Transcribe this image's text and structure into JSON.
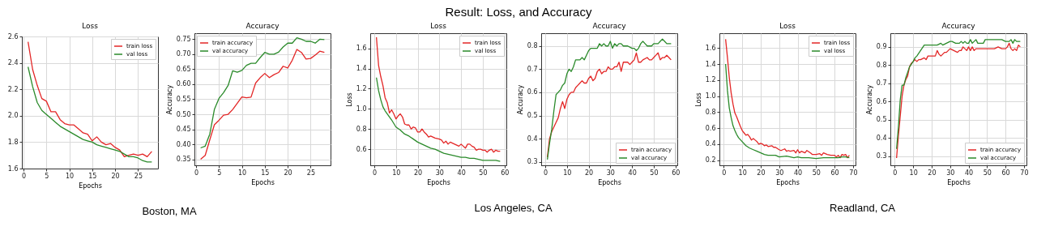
{
  "chart_data": [
    {
      "type": "line",
      "title": "Loss",
      "xlabel": "Epochs",
      "annotations": [
        "Result: Loss, and Accuracy",
        "Boston, MA"
      ],
      "xlim": [
        -0.35,
        29.35
      ],
      "xticks": [
        0,
        5,
        10,
        15,
        20,
        25
      ],
      "ylim": [
        1.6,
        2.6
      ],
      "yticks": [
        1.6,
        1.8,
        {
          "value": 2.0,
          "label": "2.0"
        },
        2.2,
        2.4,
        2.6
      ],
      "grid": true,
      "legend": "top right",
      "x": [
        1,
        2,
        3,
        4,
        5,
        6,
        7,
        8,
        9,
        10,
        11,
        12,
        13,
        14,
        15,
        16,
        17,
        18,
        19,
        20,
        21,
        22,
        23,
        24,
        25,
        26,
        27,
        28
      ],
      "series": [
        {
          "name": "train loss",
          "color": "#e32626",
          "values": [
            2.56,
            2.35,
            2.23,
            2.13,
            2.11,
            2.03,
            2.03,
            1.97,
            1.94,
            1.93,
            1.93,
            1.9,
            1.87,
            1.86,
            1.81,
            1.84,
            1.8,
            1.78,
            1.79,
            1.76,
            1.74,
            1.69,
            1.7,
            1.71,
            1.7,
            1.71,
            1.69,
            1.73
          ]
        },
        {
          "name": "val loss",
          "color": "#2a8a2a",
          "values": [
            2.37,
            2.22,
            2.1,
            2.04,
            2.01,
            1.98,
            1.95,
            1.92,
            1.9,
            1.88,
            1.86,
            1.84,
            1.82,
            1.81,
            1.8,
            1.78,
            1.77,
            1.76,
            1.75,
            1.74,
            1.73,
            1.71,
            1.69,
            1.69,
            1.68,
            1.66,
            1.65,
            1.65
          ]
        }
      ]
    },
    {
      "type": "line",
      "title": "Accuracy",
      "xlabel": "Epochs",
      "ylabel": "Accuracy",
      "xlim": [
        -0.35,
        29.35
      ],
      "xticks": [
        0,
        5,
        10,
        15,
        20,
        25
      ],
      "ylim": [
        0.33,
        0.77
      ],
      "yticks": [
        0.35,
        {
          "value": 0.4,
          "label": "0.40"
        },
        0.45,
        {
          "value": 0.5,
          "label": "0.50"
        },
        0.55,
        {
          "value": 0.6,
          "label": "0.60"
        },
        0.65,
        {
          "value": 0.7,
          "label": "0.70"
        },
        0.75
      ],
      "grid": true,
      "legend": "top left",
      "x": [
        1,
        2,
        3,
        4,
        5,
        6,
        7,
        8,
        9,
        10,
        11,
        12,
        13,
        14,
        15,
        16,
        17,
        18,
        19,
        20,
        21,
        22,
        23,
        24,
        25,
        26,
        27,
        28
      ],
      "series": [
        {
          "name": "train accuracy",
          "color": "#e32626",
          "values": [
            0.35,
            0.363,
            0.415,
            0.465,
            0.48,
            0.497,
            0.5,
            0.516,
            0.537,
            0.558,
            0.555,
            0.557,
            0.604,
            0.622,
            0.636,
            0.622,
            0.632,
            0.639,
            0.66,
            0.654,
            0.68,
            0.716,
            0.706,
            0.684,
            0.686,
            0.697,
            0.71,
            0.706
          ]
        },
        {
          "name": "val accuracy",
          "color": "#2a8a2a",
          "values": [
            0.388,
            0.394,
            0.434,
            0.516,
            0.553,
            0.572,
            0.596,
            0.645,
            0.64,
            0.646,
            0.663,
            0.67,
            0.67,
            0.689,
            0.706,
            0.7,
            0.7,
            0.707,
            0.724,
            0.737,
            0.737,
            0.755,
            0.75,
            0.743,
            0.743,
            0.737,
            0.75,
            0.749
          ]
        }
      ]
    },
    {
      "type": "line",
      "title": "Loss",
      "xlabel": "Epochs",
      "ylabel": "Loss",
      "annotations": [
        "Los Angeles, CA"
      ],
      "xlim": [
        -1.85,
        60.85
      ],
      "xticks": [
        0,
        10,
        20,
        30,
        40,
        50,
        60
      ],
      "ylim": [
        0.44,
        1.75
      ],
      "yticks": [
        0.6,
        0.8,
        {
          "value": 1.0,
          "label": "1.0"
        },
        1.2,
        1.4,
        1.6
      ],
      "grid": true,
      "legend": "top right",
      "series": [
        {
          "name": "train loss",
          "color": "#e32626",
          "x": [
            1,
            2,
            3,
            4,
            5,
            6,
            7,
            8,
            9,
            10,
            11,
            12,
            13,
            14,
            15,
            16,
            17,
            18,
            19,
            20,
            21,
            22,
            23,
            24,
            25,
            26,
            28,
            30,
            31,
            32,
            33,
            34,
            35,
            37,
            38,
            39,
            40,
            41,
            42,
            43,
            44,
            45,
            46,
            47,
            48,
            49,
            50,
            51,
            52,
            53,
            54,
            55,
            56,
            57,
            58
          ],
          "values": [
            1.71,
            1.43,
            1.32,
            1.23,
            1.11,
            1.06,
            0.96,
            0.99,
            0.95,
            0.9,
            0.93,
            0.95,
            0.92,
            0.85,
            0.84,
            0.84,
            0.8,
            0.82,
            0.81,
            0.77,
            0.77,
            0.8,
            0.77,
            0.75,
            0.72,
            0.73,
            0.71,
            0.7,
            0.69,
            0.66,
            0.68,
            0.65,
            0.67,
            0.65,
            0.64,
            0.63,
            0.65,
            0.63,
            0.61,
            0.65,
            0.65,
            0.63,
            0.62,
            0.59,
            0.6,
            0.6,
            0.59,
            0.59,
            0.57,
            0.59,
            0.6,
            0.57,
            0.59,
            0.58,
            0.58
          ]
        },
        {
          "name": "val loss",
          "color": "#2a8a2a",
          "x": [
            1,
            2,
            3,
            4,
            5,
            6,
            8,
            10,
            12,
            14,
            16,
            18,
            20,
            22,
            24,
            26,
            28,
            30,
            32,
            34,
            36,
            38,
            40,
            42,
            44,
            46,
            48,
            50,
            52,
            54,
            56,
            58
          ],
          "values": [
            1.31,
            1.18,
            1.09,
            1.02,
            0.98,
            0.95,
            0.89,
            0.82,
            0.79,
            0.75,
            0.73,
            0.7,
            0.67,
            0.65,
            0.63,
            0.61,
            0.6,
            0.58,
            0.56,
            0.55,
            0.54,
            0.53,
            0.52,
            0.52,
            0.51,
            0.51,
            0.5,
            0.49,
            0.49,
            0.49,
            0.49,
            0.48
          ]
        }
      ]
    },
    {
      "type": "line",
      "title": "Accuracy",
      "xlabel": "Epochs",
      "ylabel": "Accuracy",
      "xlim": [
        -1.85,
        60.85
      ],
      "xticks": [
        0,
        10,
        20,
        30,
        40,
        50,
        60
      ],
      "ylim": [
        0.285,
        0.855
      ],
      "yticks": [
        0.3,
        0.4,
        0.5,
        0.6,
        0.7,
        0.8
      ],
      "grid": true,
      "legend": "bottom right",
      "series": [
        {
          "name": "train accuracy",
          "color": "#e32626",
          "x": [
            1,
            2,
            3,
            4,
            5,
            6,
            7,
            8,
            9,
            10,
            11,
            12,
            13,
            14,
            15,
            16,
            17,
            18,
            19,
            20,
            21,
            22,
            23,
            24,
            25,
            26,
            27,
            28,
            29,
            30,
            31,
            32,
            33,
            34,
            35,
            36,
            38,
            39,
            40,
            41,
            42,
            43,
            44,
            45,
            47,
            48,
            49,
            50,
            51,
            52,
            53,
            54,
            55,
            56,
            57,
            58
          ],
          "values": [
            0.32,
            0.4,
            0.43,
            0.45,
            0.47,
            0.49,
            0.53,
            0.56,
            0.53,
            0.57,
            0.59,
            0.6,
            0.6,
            0.62,
            0.63,
            0.64,
            0.65,
            0.64,
            0.64,
            0.66,
            0.67,
            0.65,
            0.66,
            0.69,
            0.7,
            0.68,
            0.69,
            0.69,
            0.71,
            0.7,
            0.7,
            0.71,
            0.71,
            0.73,
            0.69,
            0.73,
            0.73,
            0.72,
            0.73,
            0.74,
            0.77,
            0.73,
            0.73,
            0.74,
            0.75,
            0.74,
            0.74,
            0.75,
            0.76,
            0.77,
            0.74,
            0.75,
            0.75,
            0.76,
            0.75,
            0.74
          ]
        },
        {
          "name": "val accuracy",
          "color": "#2a8a2a",
          "x": [
            1,
            2,
            3,
            4,
            5,
            6,
            7,
            8,
            9,
            10,
            11,
            12,
            13,
            14,
            15,
            16,
            17,
            18,
            19,
            20,
            21,
            22,
            23,
            24,
            25,
            26,
            27,
            28,
            29,
            30,
            31,
            32,
            33,
            34,
            35,
            36,
            38,
            40,
            41,
            42,
            43,
            44,
            45,
            46,
            47,
            48,
            49,
            50,
            51,
            52,
            53,
            54,
            55,
            56,
            58
          ],
          "values": [
            0.31,
            0.38,
            0.44,
            0.52,
            0.59,
            0.6,
            0.61,
            0.63,
            0.64,
            0.68,
            0.7,
            0.69,
            0.71,
            0.74,
            0.74,
            0.74,
            0.75,
            0.74,
            0.76,
            0.78,
            0.79,
            0.79,
            0.79,
            0.79,
            0.81,
            0.8,
            0.81,
            0.8,
            0.8,
            0.82,
            0.79,
            0.81,
            0.8,
            0.81,
            0.81,
            0.8,
            0.8,
            0.79,
            0.79,
            0.78,
            0.79,
            0.81,
            0.82,
            0.81,
            0.8,
            0.8,
            0.8,
            0.81,
            0.81,
            0.81,
            0.82,
            0.83,
            0.82,
            0.81,
            0.81
          ]
        }
      ]
    },
    {
      "type": "line",
      "title": "Loss",
      "xlabel": "Epochs",
      "ylabel": "Loss",
      "annotations": [
        "Readland, CA"
      ],
      "xlim": [
        -2.35,
        71.35
      ],
      "xticks": [
        0,
        10,
        20,
        30,
        40,
        50,
        60,
        70
      ],
      "ylim": [
        0.135,
        1.785
      ],
      "yticks": [
        0.2,
        0.4,
        0.6,
        0.8,
        {
          "value": 1.0,
          "label": "1.0"
        },
        1.2,
        1.4,
        1.6
      ],
      "grid": true,
      "legend": "top right",
      "series": [
        {
          "name": "train loss",
          "color": "#e32626",
          "x": [
            1,
            2,
            3,
            4,
            5,
            6,
            7,
            8,
            9,
            10,
            11,
            12,
            13,
            14,
            15,
            16,
            17,
            18,
            19,
            20,
            21,
            22,
            23,
            24,
            26,
            27,
            28,
            30,
            31,
            32,
            33,
            34,
            35,
            36,
            38,
            39,
            40,
            41,
            42,
            44,
            45,
            47,
            48,
            50,
            52,
            53,
            54,
            56,
            58,
            60,
            61,
            62,
            63,
            64,
            65,
            66,
            67,
            68
          ],
          "values": [
            1.71,
            1.48,
            1.23,
            1.04,
            0.9,
            0.79,
            0.74,
            0.68,
            0.62,
            0.57,
            0.54,
            0.51,
            0.52,
            0.49,
            0.45,
            0.47,
            0.45,
            0.43,
            0.4,
            0.41,
            0.4,
            0.38,
            0.39,
            0.37,
            0.38,
            0.36,
            0.36,
            0.33,
            0.32,
            0.33,
            0.34,
            0.31,
            0.32,
            0.31,
            0.32,
            0.29,
            0.33,
            0.29,
            0.31,
            0.29,
            0.32,
            0.29,
            0.27,
            0.27,
            0.28,
            0.26,
            0.29,
            0.27,
            0.26,
            0.26,
            0.24,
            0.26,
            0.23,
            0.27,
            0.26,
            0.27,
            0.23,
            0.26
          ]
        },
        {
          "name": "val loss",
          "color": "#2a8a2a",
          "x": [
            1,
            2,
            3,
            4,
            5,
            6,
            7,
            8,
            10,
            12,
            14,
            16,
            18,
            20,
            22,
            24,
            26,
            28,
            30,
            34,
            38,
            40,
            42,
            46,
            50,
            54,
            58,
            62,
            64,
            66,
            68
          ],
          "values": [
            1.4,
            1.07,
            0.85,
            0.73,
            0.63,
            0.57,
            0.52,
            0.48,
            0.43,
            0.38,
            0.35,
            0.33,
            0.31,
            0.29,
            0.27,
            0.26,
            0.26,
            0.26,
            0.24,
            0.25,
            0.23,
            0.24,
            0.23,
            0.23,
            0.22,
            0.23,
            0.23,
            0.23,
            0.24,
            0.24,
            0.23
          ]
        }
      ]
    },
    {
      "type": "line",
      "title": "Accuracy",
      "xlabel": "Epochs",
      "ylabel": "Accuracy",
      "xlim": [
        -2.35,
        71.35
      ],
      "xticks": [
        0,
        10,
        20,
        30,
        40,
        50,
        60,
        70
      ],
      "ylim": [
        0.25,
        0.975
      ],
      "yticks": [
        0.3,
        0.4,
        0.5,
        0.6,
        0.7,
        0.8,
        0.9
      ],
      "grid": true,
      "legend": "bottom right",
      "series": [
        {
          "name": "train accuracy",
          "color": "#e32626",
          "x": [
            1,
            2,
            3,
            4,
            5,
            6,
            7,
            8,
            9,
            10,
            11,
            12,
            13,
            14,
            16,
            17,
            18,
            20,
            22,
            23,
            24,
            25,
            27,
            28,
            30,
            32,
            34,
            35,
            36,
            37,
            38,
            39,
            40,
            41,
            42,
            43,
            44,
            46,
            48,
            50,
            52,
            54,
            56,
            58,
            60,
            61,
            62,
            63,
            64,
            65,
            66,
            67,
            68
          ],
          "values": [
            0.29,
            0.41,
            0.52,
            0.63,
            0.69,
            0.72,
            0.74,
            0.79,
            0.81,
            0.82,
            0.83,
            0.82,
            0.83,
            0.83,
            0.84,
            0.83,
            0.85,
            0.85,
            0.85,
            0.88,
            0.86,
            0.85,
            0.87,
            0.87,
            0.89,
            0.88,
            0.87,
            0.88,
            0.88,
            0.9,
            0.89,
            0.88,
            0.9,
            0.88,
            0.9,
            0.88,
            0.89,
            0.89,
            0.89,
            0.89,
            0.89,
            0.89,
            0.9,
            0.89,
            0.89,
            0.9,
            0.92,
            0.89,
            0.88,
            0.89,
            0.88,
            0.91,
            0.9
          ]
        },
        {
          "name": "val accuracy",
          "color": "#2a8a2a",
          "x": [
            1,
            2,
            3,
            4,
            5,
            6,
            7,
            8,
            10,
            11,
            12,
            14,
            16,
            18,
            20,
            22,
            23,
            25,
            26,
            28,
            30,
            31,
            33,
            35,
            36,
            37,
            38,
            39,
            40,
            41,
            42,
            44,
            45,
            46,
            48,
            49,
            50,
            52,
            54,
            56,
            58,
            60,
            62,
            63,
            64,
            65,
            66,
            68
          ],
          "values": [
            0.34,
            0.46,
            0.61,
            0.69,
            0.69,
            0.73,
            0.76,
            0.79,
            0.82,
            0.84,
            0.85,
            0.88,
            0.91,
            0.91,
            0.91,
            0.91,
            0.91,
            0.92,
            0.91,
            0.92,
            0.93,
            0.93,
            0.92,
            0.92,
            0.93,
            0.92,
            0.93,
            0.92,
            0.92,
            0.94,
            0.92,
            0.94,
            0.92,
            0.92,
            0.92,
            0.94,
            0.94,
            0.94,
            0.94,
            0.94,
            0.94,
            0.93,
            0.93,
            0.94,
            0.92,
            0.94,
            0.93,
            0.93
          ]
        }
      ]
    }
  ]
}
